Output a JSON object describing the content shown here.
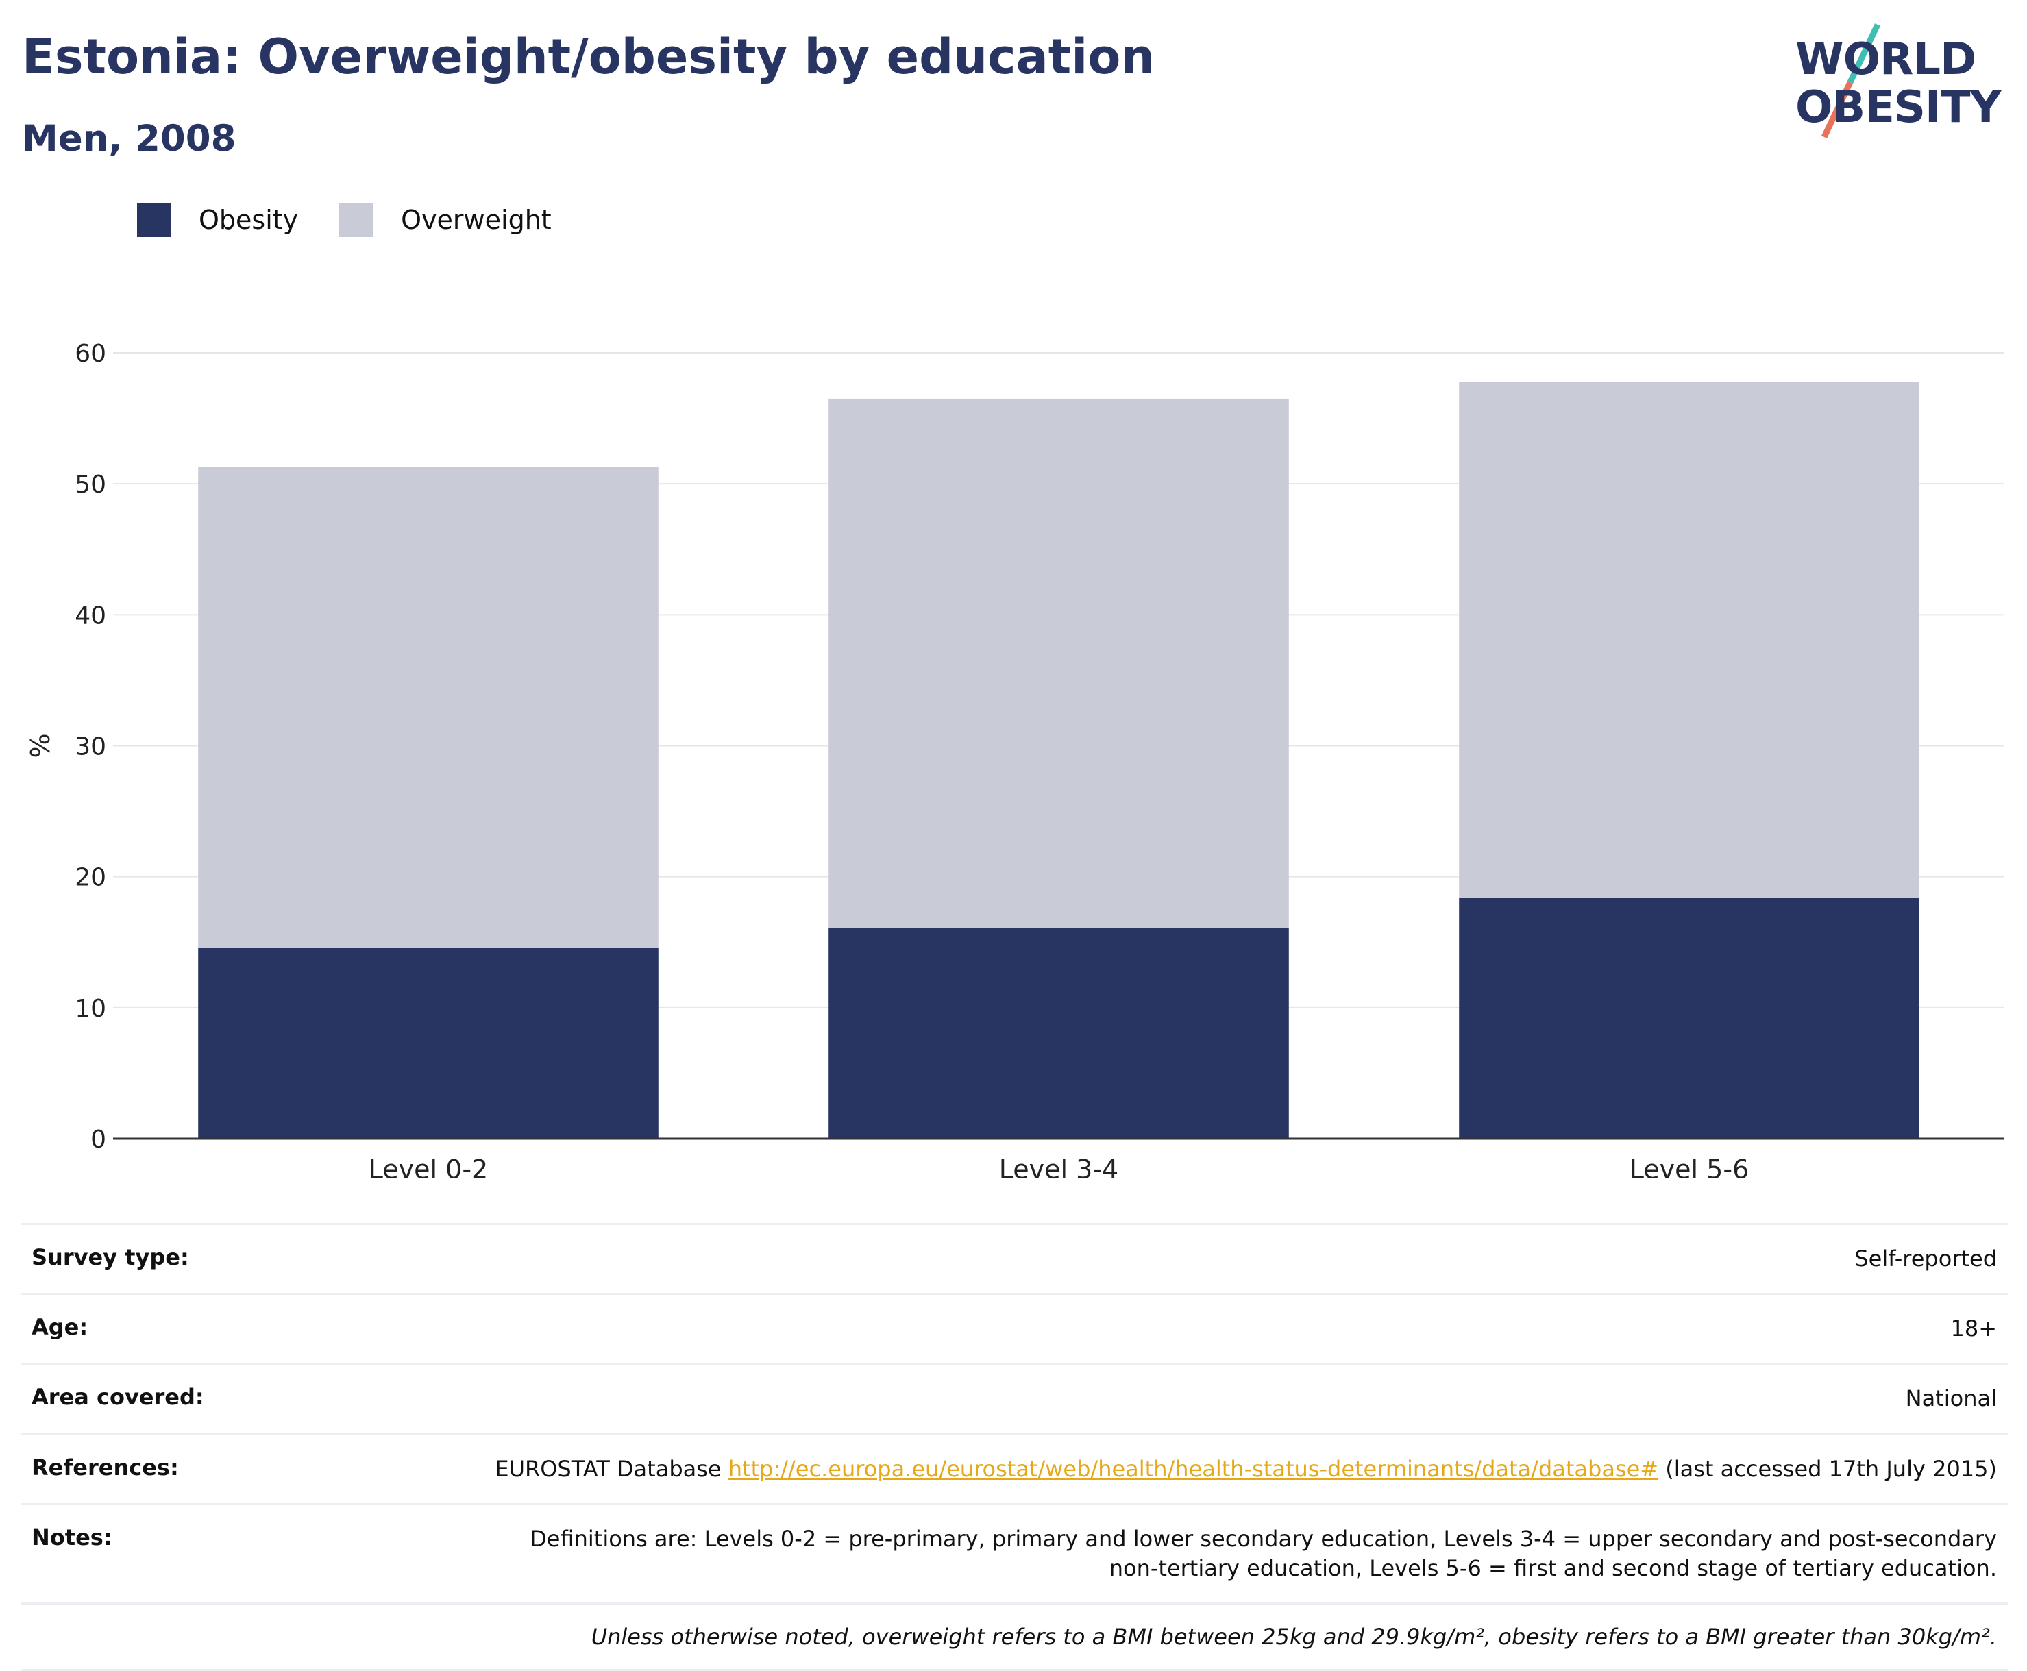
{
  "header": {
    "title": "Estonia: Overweight/obesity by education",
    "subtitle": "Men, 2008"
  },
  "logo": {
    "line1": "WORLD",
    "line2": "OBESITY"
  },
  "colors": {
    "obesity": "#283562",
    "overweight": "#c9cbd6",
    "title": "#283562",
    "accent_teal": "#3fbfb4",
    "accent_coral": "#e8735a",
    "link": "#e6a817"
  },
  "chart_data": {
    "type": "bar",
    "stacked": true,
    "categories": [
      "Level 0-2",
      "Level 3-4",
      "Level 5-6"
    ],
    "series": [
      {
        "name": "Obesity",
        "values": [
          14.6,
          16.1,
          18.4
        ]
      },
      {
        "name": "Overweight",
        "values": [
          36.7,
          40.4,
          39.4
        ]
      }
    ],
    "ylabel": "%",
    "ylim": [
      0,
      60
    ],
    "yticks": [
      0,
      10,
      20,
      30,
      40,
      50,
      60
    ],
    "grid": true,
    "legend_position": "top-left"
  },
  "meta": {
    "survey_type_label": "Survey type:",
    "survey_type_value": "Self-reported",
    "age_label": "Age:",
    "age_value": "18+",
    "area_label": "Area covered:",
    "area_value": "National",
    "references_label": "References:",
    "references_prefix": "EUROSTAT Database ",
    "references_link": "http://ec.europa.eu/eurostat/web/health/health-status-determinants/data/database#",
    "references_suffix": " (last accessed 17th July 2015)",
    "notes_label": "Notes:",
    "notes_value": "Definitions are: Levels 0-2 = pre-primary, primary and lower secondary education, Levels 3-4 = upper secondary and post-secondary non-tertiary education, Levels 5-6 = first and second stage of tertiary education.",
    "footnote": "Unless otherwise noted, overweight refers to a BMI between 25kg and 29.9kg/m², obesity refers to a BMI greater than 30kg/m²."
  }
}
